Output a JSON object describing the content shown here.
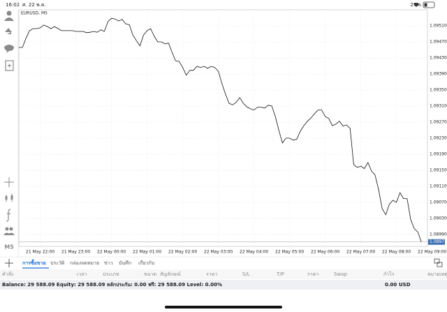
{
  "status_bar": {
    "time": "16:02",
    "date": "ศ. 22 พ.ค.",
    "battery": "27%"
  },
  "toolbar": {
    "timeframe": "M5"
  },
  "chart_data": {
    "type": "line",
    "title": "EURUSD, M5",
    "color": "#111111",
    "grid": true,
    "current_price": 1.08971,
    "values": [
      1.09456,
      1.09456,
      1.09479,
      1.09498,
      1.09503,
      1.09503,
      1.09505,
      1.09512,
      1.09508,
      1.09503,
      1.09508,
      1.09503,
      1.09498,
      1.09498,
      1.09498,
      1.09498,
      1.09496,
      1.09496,
      1.09496,
      1.09493,
      1.09494,
      1.09496,
      1.09494,
      1.095,
      1.09496,
      1.0952,
      1.09529,
      1.09527,
      1.09522,
      1.09526,
      1.09515,
      1.09513,
      1.09487,
      1.09473,
      1.0946,
      1.09487,
      1.09498,
      1.09503,
      1.09484,
      1.0947,
      1.0947,
      1.09465,
      1.09467,
      1.09444,
      1.09423,
      1.09421,
      1.09406,
      1.09387,
      1.09399,
      1.09399,
      1.09409,
      1.09406,
      1.09409,
      1.09404,
      1.09409,
      1.09406,
      1.09397,
      1.09366,
      1.0934,
      1.09317,
      1.09313,
      1.09319,
      1.09331,
      1.09317,
      1.09308,
      1.09303,
      1.093,
      1.09307,
      1.09307,
      1.09305,
      1.09312,
      1.0931,
      1.09284,
      1.09249,
      1.09218,
      1.0923,
      1.0923,
      1.09225,
      1.09227,
      1.09247,
      1.09261,
      1.09272,
      1.0928,
      1.09291,
      1.093,
      1.093,
      1.09284,
      1.09279,
      1.09261,
      1.09265,
      1.09272,
      1.0926,
      1.09263,
      1.09254,
      1.09164,
      1.09157,
      1.0916,
      1.09154,
      1.09169,
      1.09148,
      1.09138,
      1.09101,
      1.09054,
      1.09039,
      1.09065,
      1.09075,
      1.0907,
      1.09094,
      1.09079,
      1.09079,
      1.09027,
      1.09004,
      1.08996,
      1.08971
    ],
    "xlim": [
      0,
      114.7
    ],
    "xticks": [
      {
        "value": 6,
        "label": "21 May 22:00"
      },
      {
        "value": 16,
        "label": "21 May 23:00"
      },
      {
        "value": 26,
        "label": "22 May 00:00"
      },
      {
        "value": 36,
        "label": "22 May 01:00"
      },
      {
        "value": 46,
        "label": "22 May 02:00"
      },
      {
        "value": 56,
        "label": "22 May 03:00"
      },
      {
        "value": 66,
        "label": "22 May 04:00"
      },
      {
        "value": 76,
        "label": "22 May 05:00"
      },
      {
        "value": 86,
        "label": "22 May 06:00"
      },
      {
        "value": 96,
        "label": "22 May 07:00"
      },
      {
        "value": 106,
        "label": "22 May 08:00"
      },
      {
        "value": 116,
        "label": "22 May 09:00"
      }
    ],
    "ylim": [
      1.0896,
      1.0955
    ],
    "yticks": [
      {
        "value": 1.0899,
        "label": "1.08990"
      },
      {
        "value": 1.0903,
        "label": "1.09030"
      },
      {
        "value": 1.0907,
        "label": "1.09070"
      },
      {
        "value": 1.0911,
        "label": "1.09110"
      },
      {
        "value": 1.0915,
        "label": "1.09150"
      },
      {
        "value": 1.0919,
        "label": "1.09190"
      },
      {
        "value": 1.0923,
        "label": "1.09230"
      },
      {
        "value": 1.0927,
        "label": "1.09270"
      },
      {
        "value": 1.0931,
        "label": "1.09310"
      },
      {
        "value": 1.0935,
        "label": "1.09350"
      },
      {
        "value": 1.0939,
        "label": "1.09390"
      },
      {
        "value": 1.0943,
        "label": "1.09430"
      },
      {
        "value": 1.0947,
        "label": "1.09470"
      },
      {
        "value": 1.0951,
        "label": "1.09510"
      }
    ]
  },
  "tabs": [
    "การซื้อขาย",
    "ประวัติ",
    "กล่องจดหมาย",
    "ข่าว",
    "บันทึก",
    "เกี่ยวกับ"
  ],
  "active_tab": 0,
  "columns": [
    "คำสั่ง",
    "เวลา",
    "ประเภท",
    "ขนาด",
    "สัญลักษณ์",
    "ราคา",
    "S/L",
    "T/P",
    "ราคา",
    "Swap",
    "กำไร",
    "หมายเหตุ"
  ],
  "footer": {
    "account": "Balance: 29 588.09 Equity: 29 588.09 หลักประกัน: 0.00 ฟรี: 29 588.09 Level: 0.00%",
    "profit": "0.00",
    "currency": "USD"
  }
}
